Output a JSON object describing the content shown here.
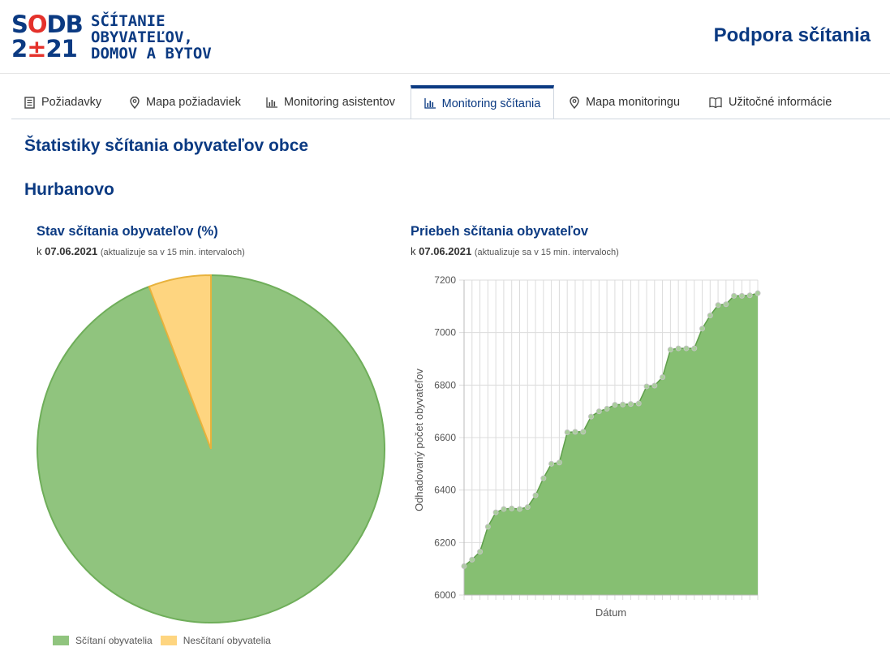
{
  "header": {
    "logo_mark_top": "SODB",
    "logo_mark_bottom": "2±21",
    "logo_text": [
      "SČÍTANIE",
      "OBYVATEĽOV,",
      "DOMOV A BYTOV"
    ],
    "title": "Podpora sčítania"
  },
  "tabs": [
    {
      "label": "Požiadavky",
      "icon": "document-icon"
    },
    {
      "label": "Mapa požiadaviek",
      "icon": "map-pin-icon"
    },
    {
      "label": "Monitoring asistentov",
      "icon": "bar-chart-icon"
    },
    {
      "label": "Monitoring sčítania",
      "icon": "bar-chart-icon",
      "active": true
    },
    {
      "label": "Mapa monitoringu",
      "icon": "map-pin-icon"
    },
    {
      "label": "Užitočné informácie",
      "icon": "book-icon"
    }
  ],
  "page": {
    "title": "Štatistiky sčítania obyvateľov obce",
    "city": "Hurbanovo"
  },
  "pie_section": {
    "title": "Stav sčítania obyvateľov (%)",
    "prefix": "k",
    "date": "07.06.2021",
    "note": "(aktualizuje sa v 15 min. intervaloch)"
  },
  "line_section": {
    "title": "Priebeh sčítania obyvateľov",
    "prefix": "k",
    "date": "07.06.2021",
    "note": "(aktualizuje sa v 15 min. intervaloch)"
  },
  "chart_data": [
    {
      "type": "pie",
      "labels": [
        "Sčítaní obyvatelia",
        "Nesčítaní obyvatelia"
      ],
      "values": [
        94.2,
        5.8
      ],
      "colors": [
        "#90c47e",
        "#fed580"
      ],
      "legend_placement": "bottom"
    },
    {
      "type": "area",
      "xlabel": "Dátum",
      "ylabel": "Odhadovaný počet obyvateľov",
      "ylim": [
        6000,
        7200
      ],
      "yticks": [
        6000,
        6200,
        6400,
        6600,
        6800,
        7000,
        7200
      ],
      "color": "#86bf72",
      "grid": true,
      "values": [
        6110,
        6135,
        6165,
        6260,
        6315,
        6328,
        6330,
        6328,
        6335,
        6380,
        6445,
        6500,
        6505,
        6620,
        6622,
        6622,
        6680,
        6700,
        6710,
        6725,
        6726,
        6728,
        6730,
        6795,
        6798,
        6830,
        6935,
        6940,
        6940,
        6940,
        7015,
        7065,
        7105,
        7108,
        7140,
        7140,
        7142,
        7150
      ]
    }
  ]
}
